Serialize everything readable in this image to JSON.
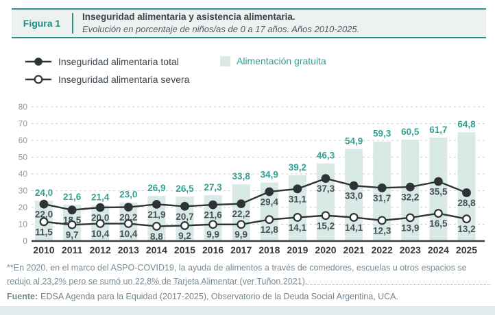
{
  "header": {
    "figure_label": "Figura 1",
    "title": "Inseguridad alimentaria y asistencia alimentaria.",
    "subtitle": "Evolución en porcentaje de niños/as de 0 a 17 años. Años 2010-2025."
  },
  "legend": {
    "total_label": "Inseguridad alimentaria total",
    "severa_label": "Inseguridad alimentaria severa",
    "gratuita_label": "Alimentación gratuita"
  },
  "colors": {
    "teal_accent": "#2e8f86",
    "teal_label": "#33a093",
    "bar_fill": "#d9e9e5",
    "line_dark": "#2e3336",
    "grid_gray": "#c9cfd1",
    "axis_dark": "#373d40",
    "ytick_gray": "#8f989b",
    "value_label_dark": "#474f58",
    "year_label_dark": "#333a3e"
  },
  "chart_data": {
    "type": "bar",
    "note": "combo chart: one bar series + two line series, percentages of children 0-17",
    "categories": [
      "2010",
      "2011",
      "2012",
      "2013",
      "2014",
      "2015",
      "2016",
      "2017",
      "2018",
      "2019",
      "2020",
      "2021",
      "2022",
      "2023",
      "2024",
      "2025"
    ],
    "series": [
      {
        "name": "Alimentación gratuita",
        "type": "bar",
        "marker": "none",
        "values": [
          24.0,
          21.6,
          21.4,
          23.0,
          26.9,
          26.5,
          27.3,
          33.8,
          34.9,
          39.2,
          46.3,
          54.9,
          59.3,
          60.5,
          61.7,
          64.8
        ]
      },
      {
        "name": "Inseguridad alimentaria total",
        "type": "line",
        "marker": "filled",
        "values": [
          22.0,
          18.5,
          20.0,
          20.2,
          21.9,
          20.7,
          21.6,
          22.2,
          29.4,
          31.1,
          37.3,
          33.0,
          31.7,
          32.2,
          35.5,
          28.8
        ]
      },
      {
        "name": "Inseguridad alimentaria severa",
        "type": "line",
        "marker": "open",
        "values": [
          11.5,
          9.7,
          10.4,
          10.4,
          8.8,
          9.2,
          9.9,
          9.9,
          12.8,
          14.1,
          15.2,
          14.1,
          12.3,
          13.9,
          16.5,
          13.2
        ]
      }
    ],
    "title": "Inseguridad alimentaria y asistencia alimentaria.",
    "xlabel": "",
    "ylabel": "",
    "ylim": [
      0,
      80
    ],
    "yticks": [
      0,
      10,
      20,
      30,
      40,
      50,
      60,
      70,
      80
    ],
    "grid": "horizontal-dashed",
    "legend_position": "top-left",
    "decimal_separator": ","
  },
  "footnote": "**En 2020, en el marco del ASPO-COVID19, la ayuda de alimentos a través de comedores, escuelas u otros espacios se redujo al 23,2% pero se sumó un 22,8% de Tarjeta Alimentar (ver Tuñon 2021).",
  "source": {
    "label": "Fuente:",
    "text": "EDSA Agenda para la Equidad (2017-2025), Observatorio de la Deuda Social Argentina, UCA."
  }
}
